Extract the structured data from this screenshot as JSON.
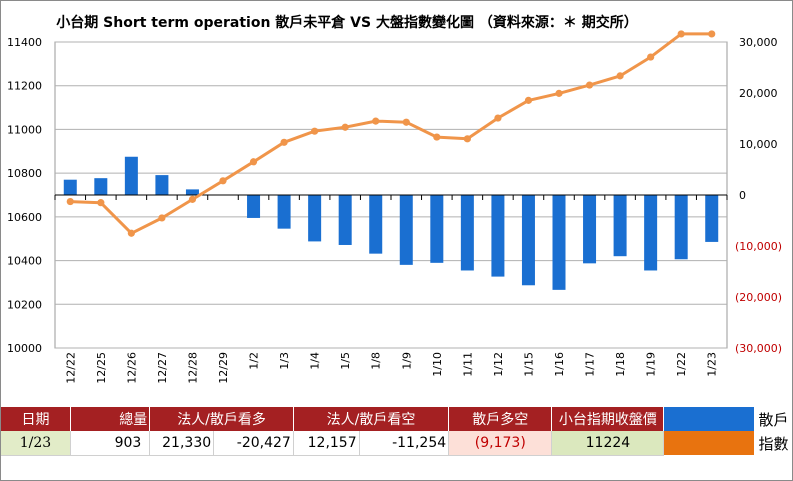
{
  "chart_data": {
    "type": "bar+line",
    "title": "小台期 Short term operation  散戶未平倉 VS 大盤指數變化圖  （資料來源：＊ 期交所）",
    "categories": [
      "12/22",
      "12/25",
      "12/26",
      "12/27",
      "12/28",
      "12/29",
      "1/2",
      "1/3",
      "1/4",
      "1/5",
      "1/8",
      "1/9",
      "1/10",
      "1/11",
      "1/12",
      "1/15",
      "1/16",
      "1/17",
      "1/18",
      "1/19",
      "1/22",
      "1/23"
    ],
    "left_axis": {
      "ylim": [
        10000,
        11400
      ],
      "ticks": [
        "10000",
        "10200",
        "10400",
        "10600",
        "10800",
        "11000",
        "11200",
        "11400"
      ]
    },
    "right_axis": {
      "ylim": [
        -30000,
        30000
      ],
      "ticks": [
        "30,000",
        "20,000",
        "10,000",
        "0",
        "(10,000)",
        "(20,000)",
        "(30,000)"
      ]
    },
    "series": [
      {
        "type": "bar",
        "axis": "right",
        "color": "#1a6fd1",
        "values": [
          3000,
          3300,
          7500,
          3900,
          1100,
          0,
          -4500,
          -6600,
          -9100,
          -9800,
          -11500,
          -13700,
          -13300,
          -14800,
          -16000,
          -17700,
          -18600,
          -13400,
          -12000,
          -14800,
          -12600,
          -9200
        ]
      },
      {
        "type": "line",
        "axis": "left",
        "color": "#f0954a",
        "values": [
          10670,
          10665,
          10525,
          10595,
          10680,
          10765,
          10852,
          10941,
          10992,
          11010,
          11038,
          11033,
          10965,
          10957,
          11052,
          11133,
          11165,
          11203,
          11245,
          11331,
          11437,
          11437
        ]
      }
    ]
  },
  "table": {
    "headers": [
      "日期",
      "總量",
      "法人/散戶看多",
      "",
      "法人/散戶看空",
      "",
      "散戶多空",
      "小台指期收盤價"
    ],
    "row": [
      "1/23",
      "903",
      "21,330",
      "-20,427",
      "12,157",
      "-11,254",
      "(9,173)",
      "11224"
    ],
    "legend": {
      "blue_label": "散戶",
      "orange_label": "指數"
    }
  },
  "colors": {
    "bar": "#1a6fd1",
    "line": "#f0954a",
    "header_bg": "#a42022"
  }
}
